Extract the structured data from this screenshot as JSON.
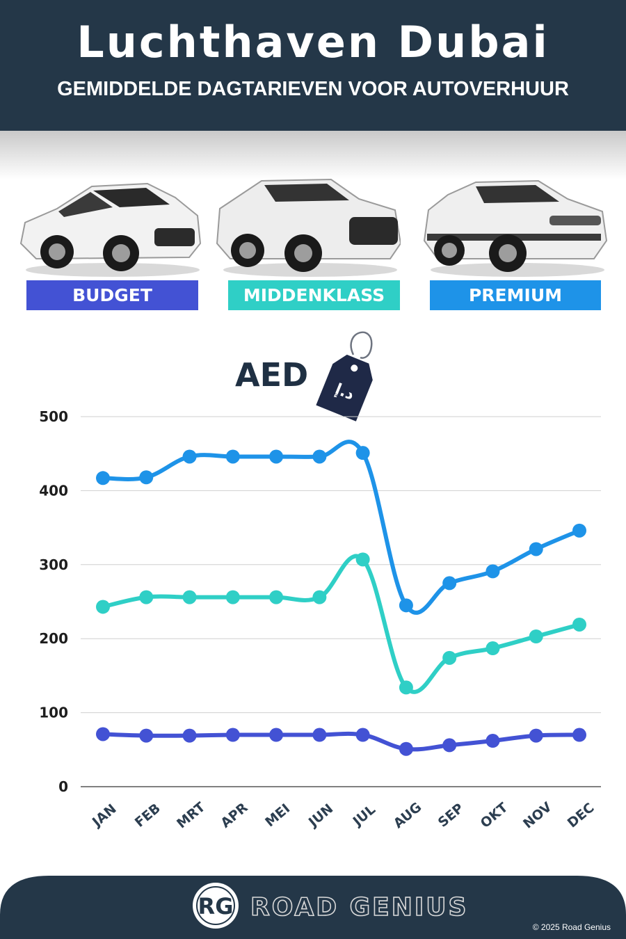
{
  "header": {
    "title": "Luchthaven Dubai",
    "subtitle": "GEMIDDELDE DAGTARIEVEN VOOR AUTOVERHUUR"
  },
  "categories": [
    {
      "label": "BUDGET",
      "color": "#4352d4",
      "icon": "hatchback-car"
    },
    {
      "label": "MIDDENKLASS",
      "color": "#2fcfc6",
      "icon": "suv-car"
    },
    {
      "label": "PREMIUM",
      "color": "#1e93e8",
      "icon": "luxury-suv-car"
    }
  ],
  "currency": {
    "label": "AED",
    "icon": "price-tag-icon",
    "tag_text": "د.إ"
  },
  "chart_data": {
    "type": "line",
    "categories": [
      "JAN",
      "FEB",
      "MRT",
      "APR",
      "MEI",
      "JUN",
      "JUL",
      "AUG",
      "SEP",
      "OKT",
      "NOV",
      "DEC"
    ],
    "series": [
      {
        "name": "PREMIUM",
        "color": "#1e93e8",
        "values": [
          417,
          418,
          446,
          446,
          446,
          446,
          451,
          245,
          275,
          291,
          321,
          346
        ]
      },
      {
        "name": "MIDDENKLASS",
        "color": "#2fcfc6",
        "values": [
          243,
          256,
          256,
          256,
          256,
          256,
          307,
          134,
          174,
          187,
          203,
          219
        ]
      },
      {
        "name": "BUDGET",
        "color": "#4352d4",
        "values": [
          71,
          69,
          69,
          70,
          70,
          70,
          70,
          51,
          56,
          62,
          69,
          70
        ]
      }
    ],
    "yticks": [
      0,
      100,
      200,
      300,
      400,
      500
    ],
    "ylim": [
      0,
      500
    ],
    "grid": true
  },
  "footer": {
    "logo_letters": "RG",
    "brand": "ROAD GENIUS",
    "copyright": "© 2025 Road Genius"
  }
}
